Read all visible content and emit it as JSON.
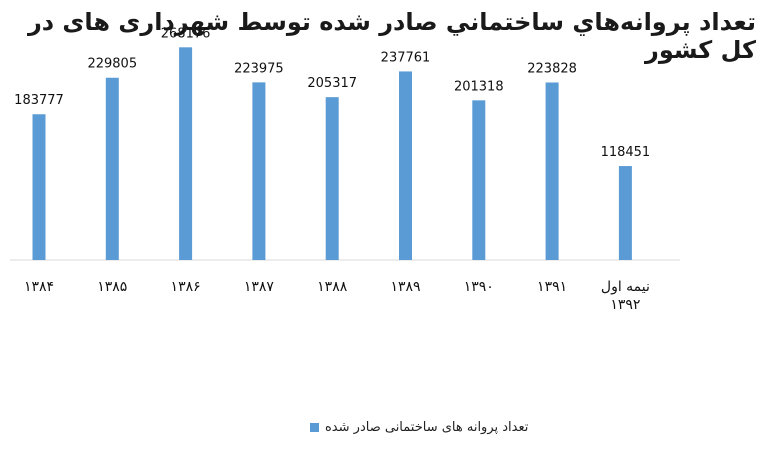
{
  "chart_data": {
    "type": "bar",
    "title": "تعداد پروانه‌هاي ساختماني صادر شده توسط شهرداری های در کل کشور",
    "categories": [
      "۱۳۸۴",
      "۱۳۸۵",
      "۱۳۸۶",
      "۱۳۸۷",
      "۱۳۸۸",
      "۱۳۸۹",
      "۱۳۹۰",
      "۱۳۹۱",
      "نیمه اول ۱۳۹۲"
    ],
    "series": [
      {
        "name": "تعداد پروانه های ساختمانی صادر شده",
        "values": [
          183777,
          229805,
          268176,
          223975,
          205317,
          237761,
          201318,
          223828,
          118451
        ],
        "color": "#5B9BD5"
      }
    ],
    "ylim": [
      0,
      290000
    ],
    "grid": false,
    "legend_position": "bottom",
    "data_labels": true
  }
}
